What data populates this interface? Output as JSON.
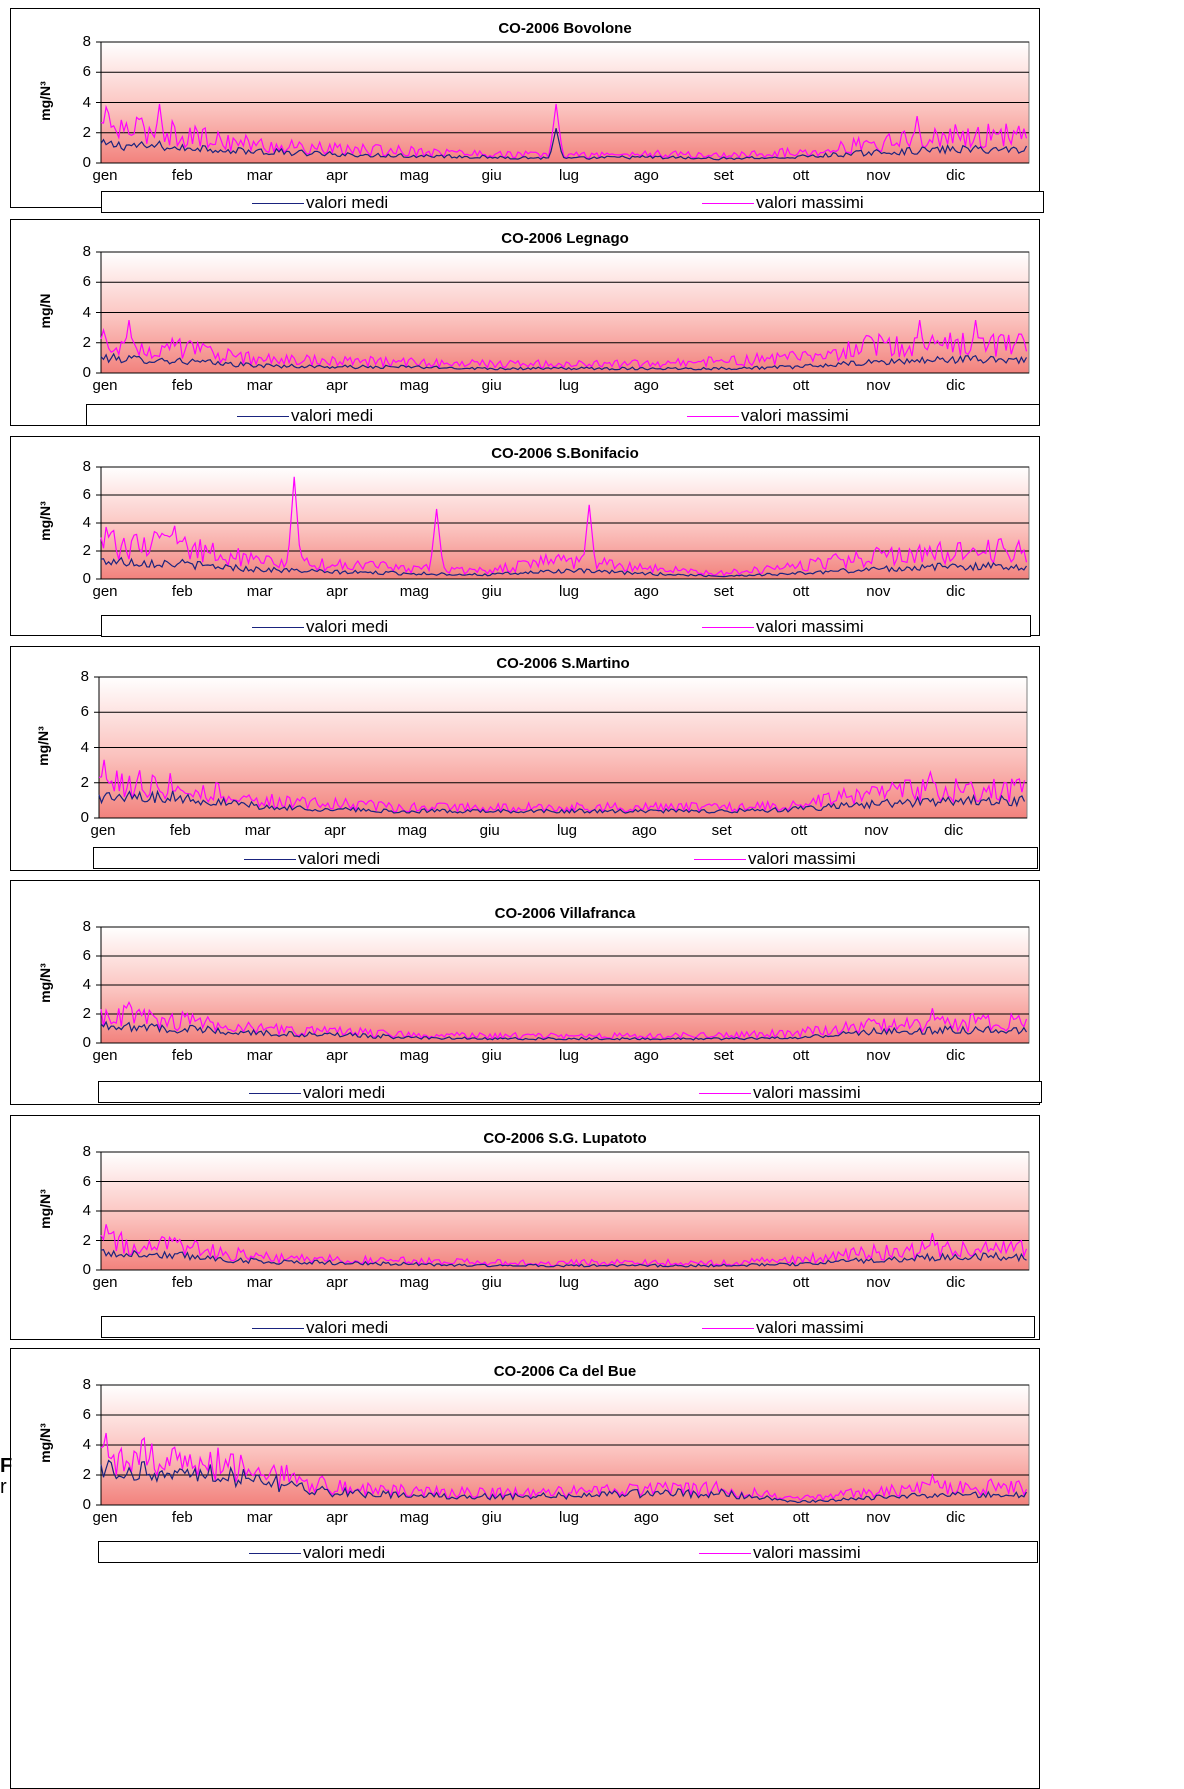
{
  "chart_data": [
    {
      "type": "line",
      "title": "CO-2006 Bovolone",
      "ylabel": "mg/N³",
      "yticks": [
        "0",
        "2",
        "4",
        "6",
        "8"
      ],
      "ylim": [
        0,
        8
      ],
      "categories": [
        "gen",
        "feb",
        "mar",
        "apr",
        "mag",
        "giu",
        "lug",
        "ago",
        "set",
        "ott",
        "nov",
        "dic"
      ],
      "series": [
        {
          "name": "valori medi",
          "color": "#1a237e",
          "values": [
            1.2,
            1.1,
            0.8,
            0.6,
            0.5,
            0.4,
            0.3,
            0.4,
            0.3,
            0.4,
            0.7,
            0.9
          ]
        },
        {
          "name": "valori massimi",
          "color": "#ff00ff",
          "values": [
            2.4,
            1.9,
            1.2,
            0.9,
            0.8,
            0.6,
            0.5,
            0.6,
            0.5,
            0.7,
            1.3,
            1.8
          ]
        }
      ],
      "peaks": [
        {
          "series": 1,
          "x": 5.9,
          "y": 3.9
        },
        {
          "series": 0,
          "x": 5.9,
          "y": 2.3
        },
        {
          "series": 1,
          "x": 0.75,
          "y": 3.9
        },
        {
          "series": 1,
          "x": 0.05,
          "y": 3.7
        },
        {
          "series": 1,
          "x": 10.55,
          "y": 3.1
        }
      ],
      "grid": true,
      "legend": "bottom"
    },
    {
      "type": "line",
      "title": "CO-2006 Legnago",
      "ylabel": "mg/N",
      "yticks": [
        "0",
        "2",
        "4",
        "6",
        "8"
      ],
      "ylim": [
        0,
        8
      ],
      "categories": [
        "gen",
        "feb",
        "mar",
        "apr",
        "mag",
        "giu",
        "lug",
        "ago",
        "set",
        "ott",
        "nov",
        "dic"
      ],
      "series": [
        {
          "name": "valori medi",
          "color": "#1a237e",
          "values": [
            1.0,
            0.8,
            0.5,
            0.4,
            0.4,
            0.3,
            0.3,
            0.3,
            0.3,
            0.4,
            0.7,
            0.9
          ]
        },
        {
          "name": "valori massimi",
          "color": "#ff00ff",
          "values": [
            2.0,
            1.6,
            0.9,
            0.8,
            0.7,
            0.6,
            0.6,
            0.6,
            0.8,
            1.0,
            1.8,
            1.9
          ]
        }
      ],
      "peaks": [
        {
          "series": 1,
          "x": 0.35,
          "y": 3.5
        },
        {
          "series": 1,
          "x": 10.6,
          "y": 3.5
        },
        {
          "series": 1,
          "x": 11.3,
          "y": 3.5
        }
      ],
      "grid": true,
      "legend": "bottom"
    },
    {
      "type": "line",
      "title": "CO-2006 S.Bonifacio",
      "ylabel": "mg/N³",
      "yticks": [
        "0",
        "2",
        "4",
        "6",
        "8"
      ],
      "ylim": [
        0,
        8
      ],
      "categories": [
        "gen",
        "feb",
        "mar",
        "apr",
        "mag",
        "giu",
        "lug",
        "ago",
        "set",
        "ott",
        "nov",
        "dic"
      ],
      "series": [
        {
          "name": "valori medi",
          "color": "#1a237e",
          "values": [
            1.3,
            1.1,
            0.7,
            0.5,
            0.4,
            0.3,
            0.6,
            0.4,
            0.2,
            0.4,
            0.7,
            0.9
          ]
        },
        {
          "name": "valori massimi",
          "color": "#ff00ff",
          "values": [
            2.6,
            2.3,
            1.3,
            1.0,
            0.8,
            0.6,
            1.4,
            0.8,
            0.4,
            0.9,
            1.6,
            2.0
          ]
        }
      ],
      "peaks": [
        {
          "series": 1,
          "x": 2.5,
          "y": 7.3
        },
        {
          "series": 1,
          "x": 4.35,
          "y": 5.0
        },
        {
          "series": 1,
          "x": 6.3,
          "y": 5.3
        },
        {
          "series": 1,
          "x": 0.95,
          "y": 3.8
        }
      ],
      "grid": true,
      "legend": "bottom"
    },
    {
      "type": "line",
      "title": "CO-2006 S.Martino",
      "ylabel": "mg/N³",
      "yticks": [
        "0",
        "2",
        "4",
        "6",
        "8"
      ],
      "ylim": [
        0,
        8
      ],
      "categories": [
        "gen",
        "feb",
        "mar",
        "apr",
        "mag",
        "giu",
        "lug",
        "ago",
        "set",
        "ott",
        "nov",
        "dic"
      ],
      "series": [
        {
          "name": "valori medi",
          "color": "#1a237e",
          "values": [
            1.2,
            1.2,
            0.7,
            0.5,
            0.4,
            0.4,
            0.4,
            0.4,
            0.4,
            0.5,
            0.8,
            1.0
          ]
        },
        {
          "name": "valori massimi",
          "color": "#ff00ff",
          "values": [
            2.0,
            1.9,
            1.0,
            0.8,
            0.6,
            0.6,
            0.6,
            0.6,
            0.6,
            0.7,
            1.4,
            1.6
          ]
        }
      ],
      "peaks": [
        {
          "series": 1,
          "x": 0.05,
          "y": 3.3
        },
        {
          "series": 1,
          "x": 10.75,
          "y": 2.6
        }
      ],
      "grid": true,
      "legend": "bottom"
    },
    {
      "type": "line",
      "title": "CO-2006 Villafranca",
      "ylabel": "mg/N³",
      "yticks": [
        "0",
        "2",
        "4",
        "6",
        "8"
      ],
      "ylim": [
        0,
        8
      ],
      "categories": [
        "gen",
        "feb",
        "mar",
        "apr",
        "mag",
        "giu",
        "lug",
        "ago",
        "set",
        "ott",
        "nov",
        "dic"
      ],
      "series": [
        {
          "name": "valori medi",
          "color": "#1a237e",
          "values": [
            1.2,
            1.0,
            0.7,
            0.6,
            0.4,
            0.3,
            0.3,
            0.3,
            0.3,
            0.4,
            0.8,
            0.9
          ]
        },
        {
          "name": "valori massimi",
          "color": "#ff00ff",
          "values": [
            2.0,
            1.5,
            1.0,
            0.8,
            0.6,
            0.5,
            0.5,
            0.5,
            0.5,
            0.7,
            1.2,
            1.4
          ]
        }
      ],
      "peaks": [
        {
          "series": 1,
          "x": 0.35,
          "y": 2.8
        },
        {
          "series": 1,
          "x": 10.75,
          "y": 2.4
        }
      ],
      "grid": true,
      "legend": "bottom"
    },
    {
      "type": "line",
      "title": "CO-2006 S.G. Lupatoto",
      "ylabel": "mg/N³",
      "yticks": [
        "0",
        "2",
        "4",
        "6",
        "8"
      ],
      "ylim": [
        0,
        8
      ],
      "categories": [
        "gen",
        "feb",
        "mar",
        "apr",
        "mag",
        "giu",
        "lug",
        "ago",
        "set",
        "ott",
        "nov",
        "dic"
      ],
      "series": [
        {
          "name": "valori medi",
          "color": "#1a237e",
          "values": [
            1.2,
            1.0,
            0.6,
            0.5,
            0.4,
            0.3,
            0.3,
            0.3,
            0.3,
            0.4,
            0.7,
            0.9
          ]
        },
        {
          "name": "valori massimi",
          "color": "#ff00ff",
          "values": [
            2.0,
            1.5,
            0.9,
            0.7,
            0.6,
            0.5,
            0.5,
            0.5,
            0.5,
            0.7,
            1.2,
            1.4
          ]
        }
      ],
      "peaks": [
        {
          "series": 1,
          "x": 0.05,
          "y": 3.1
        },
        {
          "series": 1,
          "x": 10.75,
          "y": 2.5
        }
      ],
      "grid": true,
      "legend": "bottom"
    },
    {
      "type": "line",
      "title": "CO-2006 Ca del Bue",
      "ylabel": "mg/N³",
      "yticks": [
        "0",
        "2",
        "4",
        "6",
        "8"
      ],
      "ylim": [
        0,
        8
      ],
      "categories": [
        "gen",
        "feb",
        "mar",
        "apr",
        "mag",
        "giu",
        "lug",
        "ago",
        "set",
        "ott",
        "nov",
        "dic"
      ],
      "series": [
        {
          "name": "valori medi",
          "color": "#1a237e",
          "values": [
            2.4,
            2.3,
            1.9,
            0.9,
            0.7,
            0.6,
            0.7,
            0.8,
            0.9,
            0.2,
            0.5,
            0.7
          ]
        },
        {
          "name": "valori massimi",
          "color": "#ff00ff",
          "values": [
            3.2,
            3.0,
            2.3,
            1.2,
            0.9,
            0.8,
            0.9,
            1.0,
            1.1,
            0.4,
            0.9,
            1.2
          ]
        }
      ],
      "peaks": [
        {
          "series": 1,
          "x": 0.05,
          "y": 4.8
        },
        {
          "series": 1,
          "x": 10.75,
          "y": 2.0
        }
      ],
      "grid": true,
      "legend": "bottom"
    }
  ],
  "stray_text": [
    "F",
    "r"
  ]
}
